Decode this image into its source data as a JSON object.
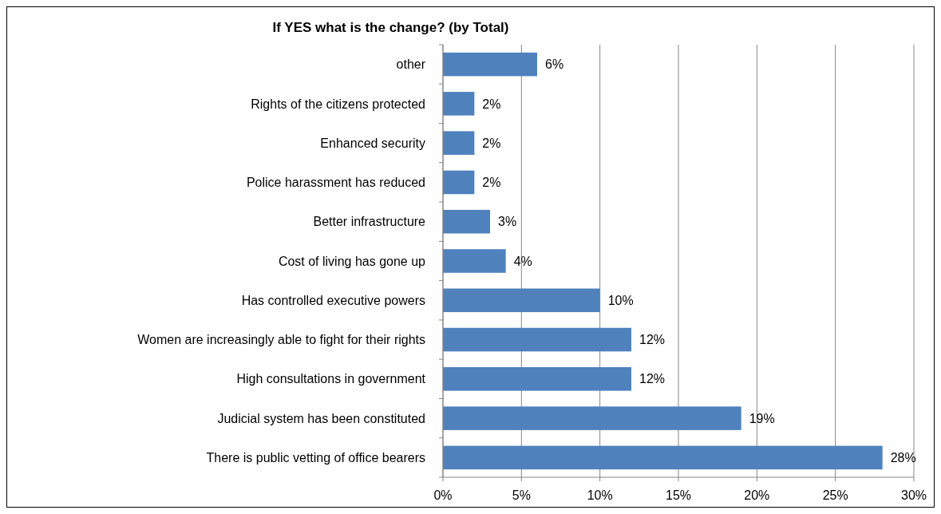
{
  "chart_data": {
    "type": "bar",
    "orientation": "horizontal",
    "title": "If YES what is the change? (by Total)",
    "categories": [
      "other",
      "Rights of the citizens protected",
      "Enhanced security",
      "Police harassment has reduced",
      "Better infrastructure",
      "Cost of living has gone up",
      "Has controlled executive powers",
      "Women are increasingly able to fight for their rights",
      "High consultations in government",
      "Judicial system has been constituted",
      "There is public vetting of office bearers"
    ],
    "values": [
      6,
      2,
      2,
      2,
      3,
      4,
      10,
      12,
      12,
      19,
      28
    ],
    "value_labels": [
      "6%",
      "2%",
      "2%",
      "2%",
      "3%",
      "4%",
      "10%",
      "12%",
      "12%",
      "19%",
      "28%"
    ],
    "color": "#4f81bd",
    "xlim": [
      0,
      30
    ],
    "xticks": [
      {
        "value": 0,
        "label": "0%"
      },
      {
        "value": 5,
        "label": "5%"
      },
      {
        "value": 10,
        "label": "10%"
      },
      {
        "value": 15,
        "label": "15%"
      },
      {
        "value": 20,
        "label": "20%"
      },
      {
        "value": 25,
        "label": "25%"
      },
      {
        "value": 30,
        "label": "30%"
      }
    ],
    "grid": "x"
  }
}
